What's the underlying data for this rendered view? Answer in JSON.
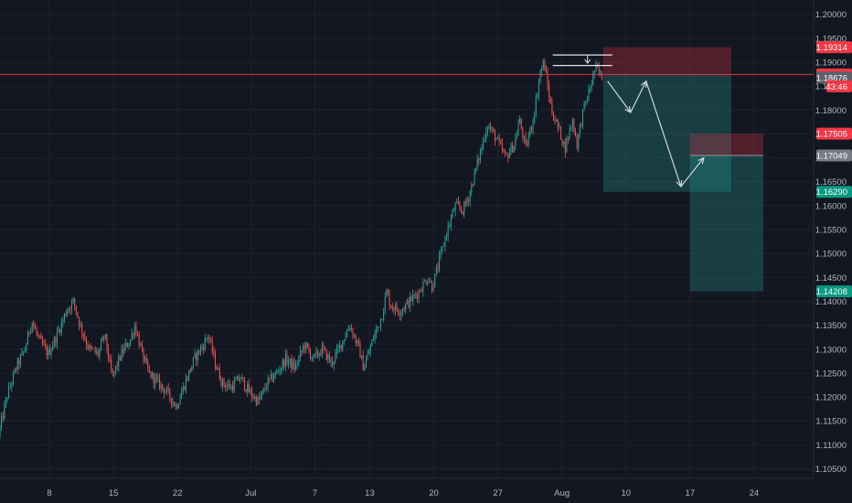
{
  "colors": {
    "background": "#131722",
    "grid": "#1e222d",
    "axis_text": "#b2b5be",
    "up": "#26a69a",
    "down": "#ef5350",
    "current_line": "#f23645",
    "stop_zone": "rgba(242,54,69,0.28)",
    "target_zone": "rgba(38,166,154,0.28)",
    "path": "#d1d4dc"
  },
  "chart_data": {
    "type": "candlestick",
    "title": "",
    "xlabel": "",
    "ylabel": "",
    "ylim": [
      1.103,
      1.203
    ],
    "y_ticks": [
      "1.10500",
      "1.11000",
      "1.11500",
      "1.12000",
      "1.12500",
      "1.13000",
      "1.13500",
      "1.14000",
      "1.14500",
      "1.15000",
      "1.15500",
      "1.16000",
      "1.16500",
      "1.17000",
      "1.17500",
      "1.18000",
      "1.18500",
      "1.19000",
      "1.19500",
      "1.20000"
    ],
    "x_ticks": [
      "8",
      "15",
      "22",
      "Jul",
      "7",
      "13",
      "20",
      "27",
      "Aug",
      "10",
      "17",
      "24"
    ],
    "x_tick_positions": [
      8,
      15,
      22,
      30,
      37,
      43,
      50,
      57,
      64,
      71,
      78,
      85
    ],
    "x_range": [
      2.6,
      91.5
    ],
    "price_path": [
      [
        2.6,
        1.112
      ],
      [
        3.5,
        1.12
      ],
      [
        4.5,
        1.126
      ],
      [
        5.5,
        1.13
      ],
      [
        6.2,
        1.136
      ],
      [
        7.0,
        1.132
      ],
      [
        8.0,
        1.129
      ],
      [
        9.0,
        1.133
      ],
      [
        10.0,
        1.138
      ],
      [
        10.8,
        1.14
      ],
      [
        11.5,
        1.135
      ],
      [
        12.5,
        1.13
      ],
      [
        13.5,
        1.129
      ],
      [
        14.2,
        1.133
      ],
      [
        15.0,
        1.124
      ],
      [
        16.0,
        1.129
      ],
      [
        17.0,
        1.132
      ],
      [
        17.5,
        1.135
      ],
      [
        18.3,
        1.129
      ],
      [
        19.0,
        1.125
      ],
      [
        20.0,
        1.123
      ],
      [
        21.0,
        1.121
      ],
      [
        22.0,
        1.118
      ],
      [
        23.0,
        1.123
      ],
      [
        24.0,
        1.128
      ],
      [
        25.0,
        1.131
      ],
      [
        25.5,
        1.133
      ],
      [
        26.3,
        1.127
      ],
      [
        27.0,
        1.123
      ],
      [
        28.0,
        1.122
      ],
      [
        29.0,
        1.124
      ],
      [
        30.0,
        1.121
      ],
      [
        31.0,
        1.119
      ],
      [
        32.0,
        1.123
      ],
      [
        33.0,
        1.125
      ],
      [
        34.0,
        1.128
      ],
      [
        35.0,
        1.126
      ],
      [
        36.0,
        1.131
      ],
      [
        37.0,
        1.128
      ],
      [
        38.0,
        1.13
      ],
      [
        39.0,
        1.127
      ],
      [
        40.0,
        1.131
      ],
      [
        41.0,
        1.135
      ],
      [
        42.0,
        1.13
      ],
      [
        42.5,
        1.126
      ],
      [
        43.5,
        1.132
      ],
      [
        44.5,
        1.137
      ],
      [
        45.0,
        1.142
      ],
      [
        45.5,
        1.139
      ],
      [
        46.5,
        1.138
      ],
      [
        47.5,
        1.14
      ],
      [
        48.5,
        1.142
      ],
      [
        49.5,
        1.145
      ],
      [
        50.0,
        1.143
      ],
      [
        50.7,
        1.148
      ],
      [
        51.5,
        1.154
      ],
      [
        52.5,
        1.16
      ],
      [
        53.3,
        1.159
      ],
      [
        54.0,
        1.162
      ],
      [
        54.8,
        1.168
      ],
      [
        55.5,
        1.173
      ],
      [
        56.0,
        1.177
      ],
      [
        57.0,
        1.174
      ],
      [
        58.0,
        1.17
      ],
      [
        59.0,
        1.173
      ],
      [
        59.5,
        1.178
      ],
      [
        60.2,
        1.172
      ],
      [
        61.0,
        1.178
      ],
      [
        61.8,
        1.188
      ],
      [
        62.2,
        1.19
      ],
      [
        63.0,
        1.18
      ],
      [
        64.0,
        1.175
      ],
      [
        64.5,
        1.172
      ],
      [
        65.3,
        1.178
      ],
      [
        65.8,
        1.173
      ],
      [
        66.5,
        1.18
      ],
      [
        67.3,
        1.185
      ],
      [
        67.8,
        1.189
      ],
      [
        68.5,
        1.187
      ]
    ],
    "current_price": 1.18743,
    "countdown": "43:46",
    "axis_labels": [
      {
        "value": 1.19314,
        "text": "1.19314",
        "color": "#f23645"
      },
      {
        "value": 1.18743,
        "text": "1.18743",
        "color": "#f23645"
      },
      {
        "value": 1.18676,
        "text": "1.18676",
        "color": "#5d606b"
      },
      {
        "value": 1.17505,
        "text": "1.17505",
        "color": "#f23645"
      },
      {
        "value": 1.17049,
        "text": "1.17049",
        "color": "#787b86"
      },
      {
        "value": 1.1629,
        "text": "1.16290",
        "color": "#089981"
      },
      {
        "value": 1.14208,
        "text": "1.14208",
        "color": "#089981"
      }
    ],
    "positions": [
      {
        "name": "short-1",
        "x_start": 68.5,
        "x_end": 82.5,
        "entry": 1.18743,
        "stop": 1.19314,
        "target": 1.1629
      },
      {
        "name": "short-2",
        "x_start": 78.0,
        "x_end": 86.0,
        "entry": 1.17049,
        "stop": 1.17505,
        "target": 1.14208
      }
    ],
    "projected_path": [
      [
        69.0,
        1.186
      ],
      [
        71.5,
        1.1795
      ],
      [
        73.2,
        1.186
      ],
      [
        77.0,
        1.164
      ],
      [
        79.5,
        1.17
      ]
    ],
    "top_lines": [
      {
        "x_start": 63.0,
        "x_end": 69.5,
        "value": 1.1915
      },
      {
        "x_start": 63.0,
        "x_end": 69.5,
        "value": 1.1893
      }
    ],
    "top_arrow": {
      "x": 66.8,
      "from": 1.1915,
      "to": 1.1898
    }
  }
}
